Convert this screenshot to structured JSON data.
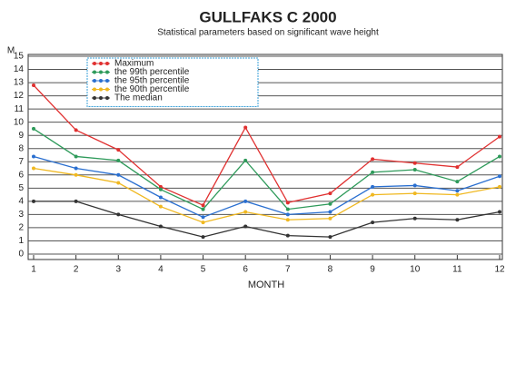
{
  "chart_data": {
    "type": "line",
    "title": "GULLFAKS C 2000",
    "subtitle": "Statistical parameters based on significant wave height",
    "y_label": "M",
    "x_label": "MONTH",
    "x": [
      1,
      2,
      3,
      4,
      5,
      6,
      7,
      8,
      9,
      10,
      11,
      12
    ],
    "xlim": [
      1,
      12
    ],
    "xticks": [
      1,
      2,
      3,
      4,
      5,
      6,
      7,
      8,
      9,
      10,
      11,
      12
    ],
    "ylim": [
      0,
      15
    ],
    "yticks": [
      0,
      1,
      2,
      3,
      4,
      5,
      6,
      7,
      8,
      9,
      10,
      11,
      12,
      13,
      14,
      15
    ],
    "grid": true,
    "legend": "top-left",
    "series": [
      {
        "name": "Maximum",
        "color": "#e03030",
        "values": [
          12.8,
          9.4,
          7.9,
          5.1,
          3.7,
          9.6,
          3.9,
          4.6,
          7.2,
          6.9,
          6.6,
          8.9
        ]
      },
      {
        "name": "the 99th percentile",
        "color": "#2e9a5a",
        "values": [
          9.5,
          7.4,
          7.1,
          4.9,
          3.4,
          7.1,
          3.4,
          3.8,
          6.2,
          6.4,
          5.5,
          7.4
        ]
      },
      {
        "name": "the 95th percentile",
        "color": "#2a6fd0",
        "values": [
          7.4,
          6.5,
          6.0,
          4.3,
          2.8,
          4.0,
          3.0,
          3.2,
          5.1,
          5.2,
          4.8,
          5.9
        ]
      },
      {
        "name": "the 90th percentile",
        "color": "#f0b820",
        "values": [
          6.5,
          6.0,
          5.4,
          3.6,
          2.4,
          3.2,
          2.6,
          2.7,
          4.5,
          4.6,
          4.5,
          5.1
        ]
      },
      {
        "name": "The median",
        "color": "#333333",
        "values": [
          4.0,
          4.0,
          3.0,
          2.1,
          1.3,
          2.1,
          1.4,
          1.3,
          2.4,
          2.7,
          2.6,
          3.2
        ]
      }
    ]
  }
}
